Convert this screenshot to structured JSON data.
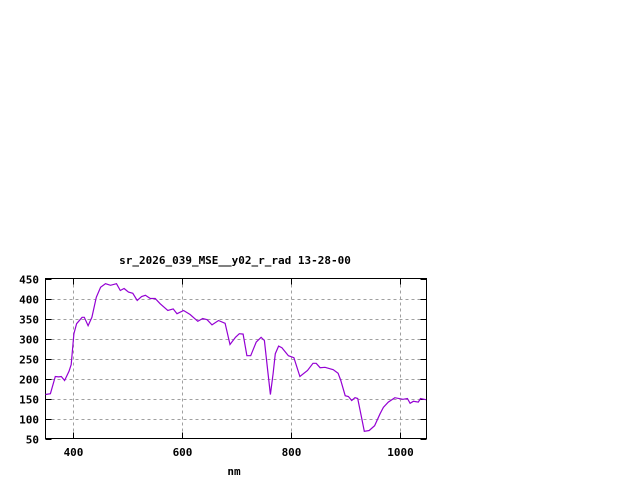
{
  "chart_data": {
    "type": "line",
    "title": "sr_2026_039_MSE__y02_r_rad 13-28-00",
    "xlabel": "nm",
    "ylabel": "",
    "xlim": [
      350,
      1048
    ],
    "ylim": [
      50,
      450
    ],
    "xticks": [
      400,
      600,
      800,
      1000
    ],
    "yticks": [
      50,
      100,
      150,
      200,
      250,
      300,
      350,
      400,
      450
    ],
    "grid": true,
    "legend": "none",
    "line_color": "#9400d3",
    "series": [
      {
        "x": [
          350,
          359,
          368,
          374,
          379,
          385,
          393,
          397,
          402,
          407,
          417,
          421,
          428,
          435,
          443,
          451,
          460,
          469,
          480,
          487,
          494,
          502,
          510,
          518,
          526,
          533,
          542,
          551,
          560,
          574,
          584,
          591,
          603,
          615,
          629,
          638,
          646,
          655,
          667,
          679,
          688,
          698,
          705,
          712,
          719,
          726,
          736,
          745,
          751,
          757,
          762,
          767,
          771,
          777,
          783,
          795,
          805,
          816,
          830,
          840,
          846,
          853,
          862,
          877,
          886,
          891,
          899,
          905,
          911,
          917,
          922,
          929,
          934,
          943,
          953,
          963,
          969,
          978,
          990,
          1005,
          1013,
          1018,
          1024,
          1033,
          1037,
          1047
        ],
        "y": [
          160,
          162,
          205,
          204,
          205,
          195,
          218,
          235,
          312,
          337,
          353,
          353,
          332,
          353,
          403,
          428,
          437,
          433,
          437,
          420,
          425,
          416,
          413,
          395,
          405,
          408,
          400,
          400,
          387,
          370,
          374,
          362,
          370,
          360,
          343,
          350,
          347,
          334,
          345,
          338,
          285,
          303,
          312,
          311,
          257,
          257,
          291,
          303,
          295,
          220,
          160,
          212,
          262,
          281,
          277,
          257,
          252,
          205,
          220,
          238,
          238,
          227,
          228,
          222,
          213,
          195,
          157,
          155,
          145,
          152,
          150,
          103,
          68,
          70,
          82,
          112,
          128,
          141,
          152,
          148,
          150,
          138,
          143,
          141,
          150,
          147
        ]
      }
    ]
  }
}
